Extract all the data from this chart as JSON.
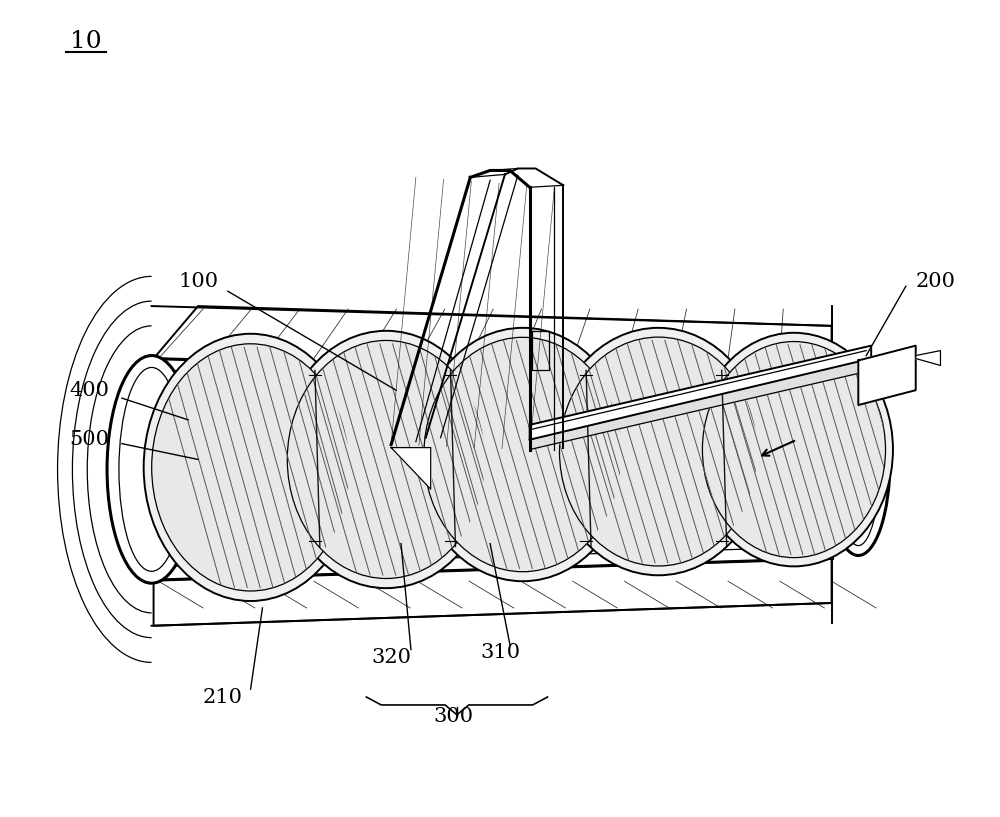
{
  "background_color": "#ffffff",
  "fig_width": 10.0,
  "fig_height": 8.17,
  "dpi": 100,
  "label_fontsize": 15,
  "lw_outer": 2.2,
  "lw_mid": 1.4,
  "lw_thin": 0.9,
  "color": "#000000"
}
